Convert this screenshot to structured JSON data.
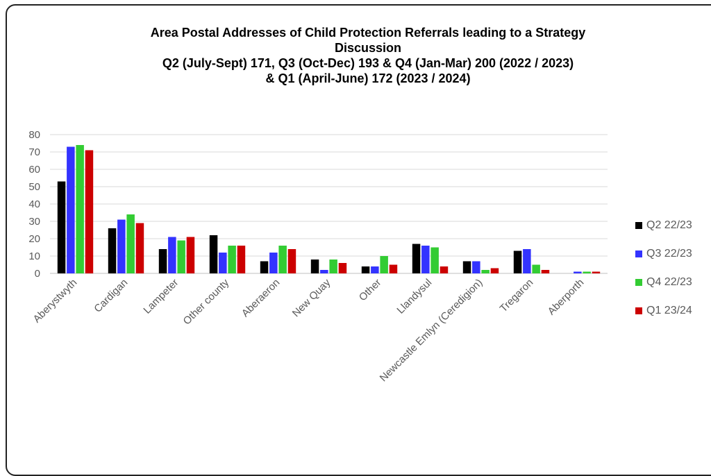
{
  "chart_data": {
    "type": "bar",
    "title_lines": [
      "Area Postal Addresses of Child Protection Referrals leading to a Strategy",
      "Discussion",
      "Q2 (July-Sept) 171, Q3 (Oct-Dec) 193 & Q4 (Jan-Mar) 200 (2022 / 2023)",
      "& Q1 (April-June) 172 (2023 / 2024)"
    ],
    "categories": [
      "Aberystwyth",
      "Cardigan",
      "Lampeter",
      "Other county",
      "Aberaeron",
      "New Quay",
      "Other",
      "Llandysul",
      "Newcastle Emlyn (Ceredigion)",
      "Tregaron",
      "Aberporth"
    ],
    "series": [
      {
        "name": "Q2 22/23",
        "color": "#000000",
        "values": [
          53,
          26,
          14,
          22,
          7,
          8,
          4,
          17,
          7,
          13,
          0
        ]
      },
      {
        "name": "Q3 22/23",
        "color": "#3333ff",
        "values": [
          73,
          31,
          21,
          12,
          12,
          2,
          4,
          16,
          7,
          14,
          1
        ]
      },
      {
        "name": "Q4 22/23",
        "color": "#33cc33",
        "values": [
          74,
          34,
          19,
          16,
          16,
          8,
          10,
          15,
          2,
          5,
          1
        ]
      },
      {
        "name": "Q1 23/24",
        "color": "#cc0000",
        "values": [
          71,
          29,
          21,
          16,
          14,
          6,
          5,
          4,
          3,
          2,
          1
        ]
      }
    ],
    "yticks": [
      0,
      10,
      20,
      30,
      40,
      50,
      60,
      70,
      80
    ],
    "ylim": [
      0,
      80
    ],
    "grid": true,
    "legend_position": "right"
  }
}
